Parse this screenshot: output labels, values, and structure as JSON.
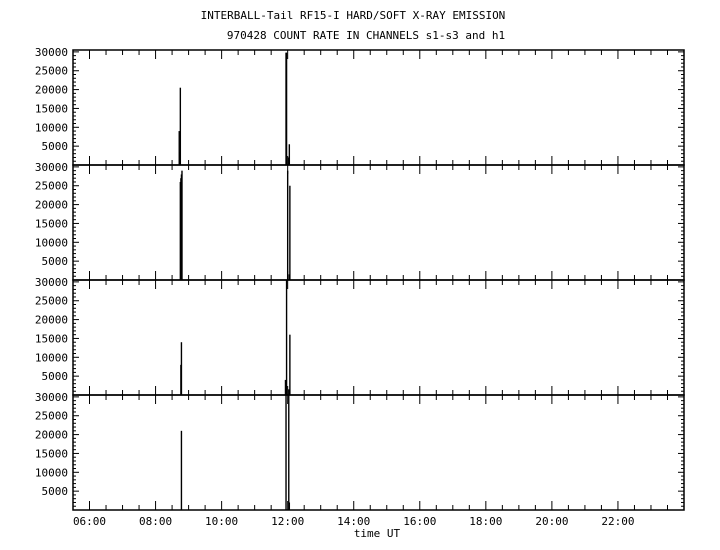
{
  "chart_data": {
    "type": "bar",
    "title": "INTERBALL-Tail RF15-I HARD/SOFT X-RAY EMISSION",
    "subtitle": "970428  COUNT RATE IN CHANNELS s1-s3 and h1",
    "xlabel": "time UT",
    "ylabel": "",
    "xlim": [
      "05:30",
      "24:00"
    ],
    "ylim": [
      0,
      30500
    ],
    "x_tick_labels": [
      "06:00",
      "08:00",
      "10:00",
      "12:00",
      "14:00",
      "16:00",
      "18:00",
      "20:00",
      "22:00"
    ],
    "y_tick_labels": [
      "5000",
      "10000",
      "15000",
      "20000",
      "25000",
      "30000"
    ],
    "grid": false,
    "color": "#000000",
    "panels": [
      {
        "points": [
          [
            "08:43",
            9000
          ],
          [
            "08:44",
            3500
          ],
          [
            "08:45",
            20500
          ],
          [
            "11:57",
            29800
          ],
          [
            "11:58",
            29800
          ],
          [
            "12:01",
            2000
          ],
          [
            "12:03",
            5500
          ]
        ]
      },
      {
        "points": [
          [
            "08:45",
            26000
          ],
          [
            "08:46",
            27000
          ],
          [
            "08:47",
            28000
          ],
          [
            "08:48",
            29000
          ],
          [
            "12:00",
            29000
          ],
          [
            "12:03",
            1500
          ],
          [
            "12:04",
            25000
          ]
        ]
      },
      {
        "points": [
          [
            "08:46",
            8000
          ],
          [
            "08:47",
            14000
          ],
          [
            "11:56",
            4000
          ],
          [
            "11:58",
            30500
          ],
          [
            "12:02",
            1500
          ],
          [
            "12:04",
            16000
          ]
        ]
      },
      {
        "points": [
          [
            "08:47",
            21000
          ],
          [
            "11:57",
            30500
          ],
          [
            "12:02",
            30500
          ],
          [
            "12:03",
            2000
          ]
        ]
      }
    ]
  }
}
